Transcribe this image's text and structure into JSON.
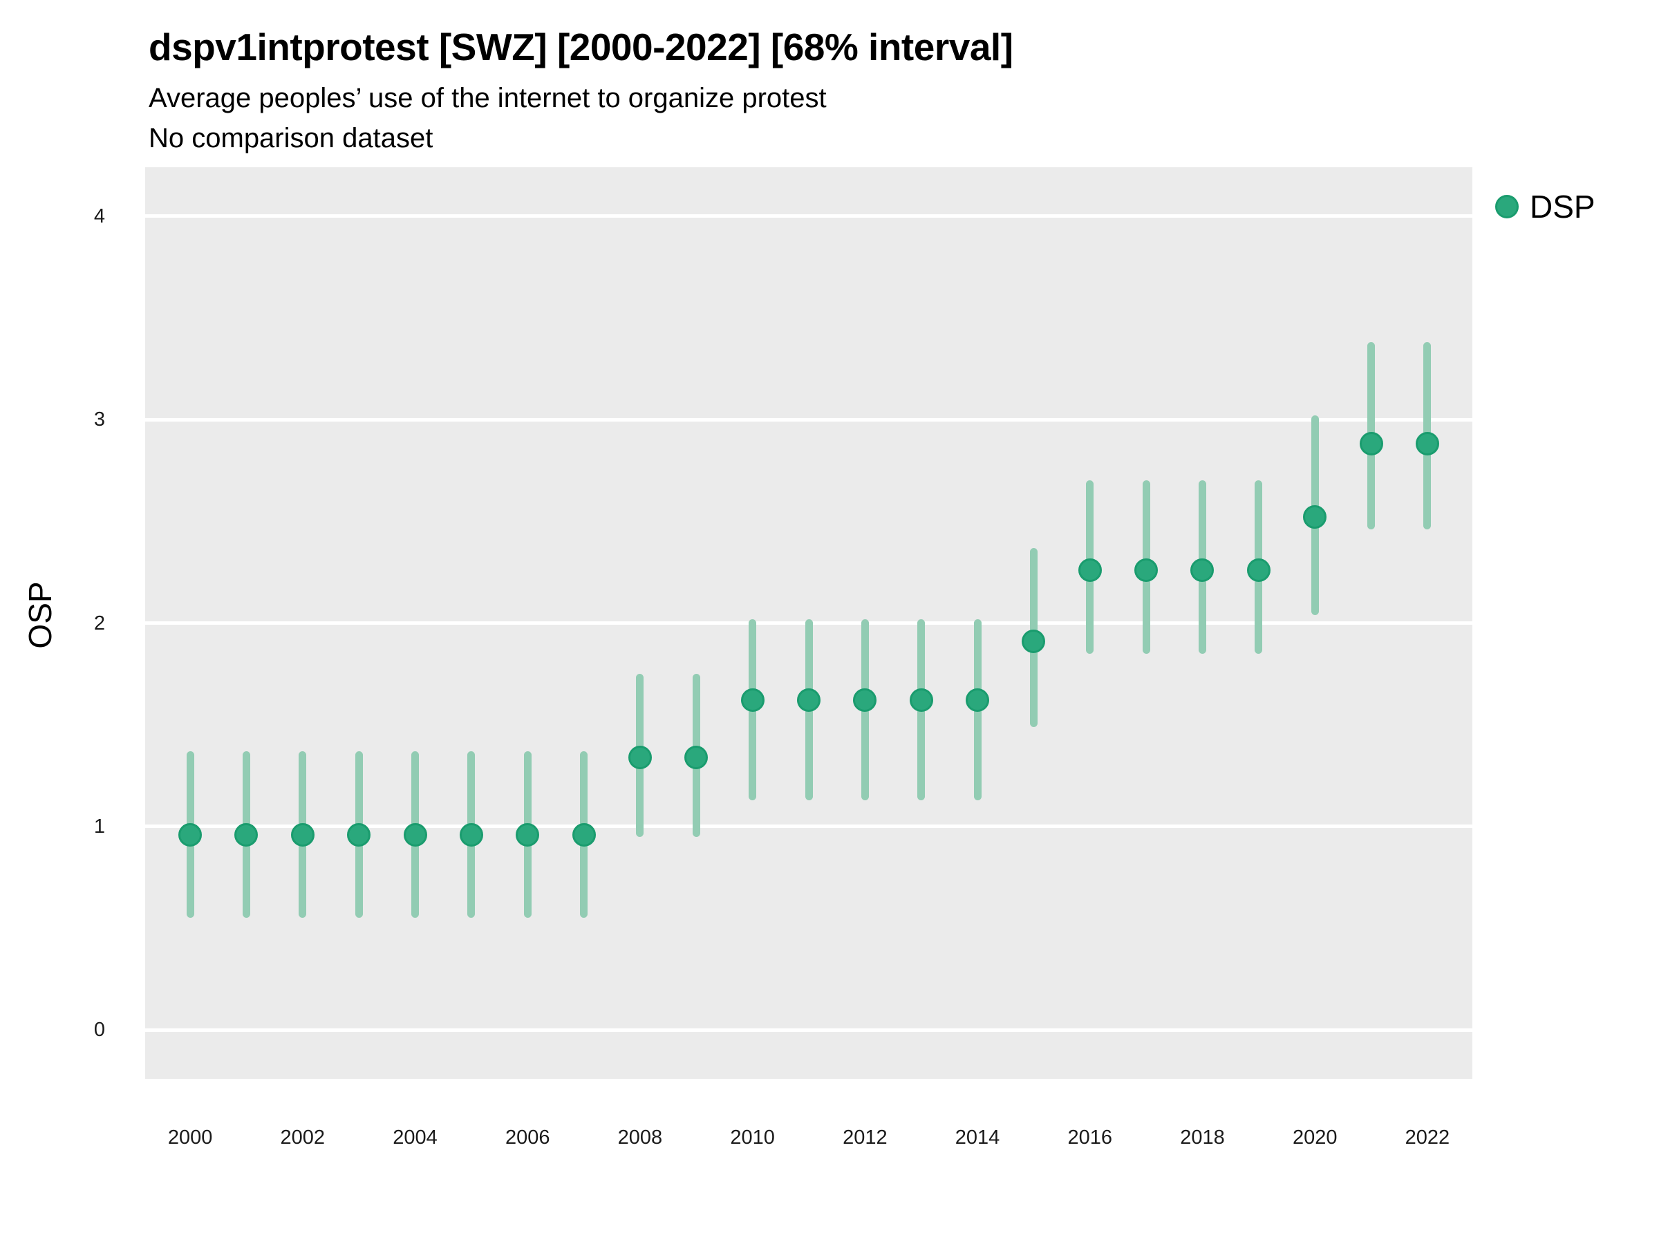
{
  "chart_data": {
    "type": "scatter",
    "title": "dspv1intprotest [SWZ] [2000-2022] [68% interval]",
    "subtitle": "Average peoples’ use of the internet to organize protest",
    "note": "No comparison dataset",
    "interval": "68%",
    "xlabel": "",
    "ylabel": "OSP",
    "xlim": [
      1999.2,
      2022.8
    ],
    "ylim": [
      -0.24,
      4.24
    ],
    "yticks": [
      0,
      1,
      2,
      3,
      4
    ],
    "xticks": [
      2000,
      2002,
      2004,
      2006,
      2008,
      2010,
      2012,
      2014,
      2016,
      2018,
      2020,
      2022
    ],
    "grid": {
      "horizontal_major": true,
      "vertical": false
    },
    "panel_bg": "#EBEBEB",
    "gridline_color": "#FFFFFF",
    "legend": {
      "position": "right",
      "label": "DSP"
    },
    "series": [
      {
        "name": "DSP",
        "marker_fill": "#2AA87C",
        "marker_stroke": "#1A9C6E",
        "interval_color": "#92CCB3",
        "points": [
          {
            "year": 2000,
            "est": 0.96,
            "lo": 0.55,
            "hi": 1.37
          },
          {
            "year": 2001,
            "est": 0.96,
            "lo": 0.55,
            "hi": 1.37
          },
          {
            "year": 2002,
            "est": 0.96,
            "lo": 0.55,
            "hi": 1.37
          },
          {
            "year": 2003,
            "est": 0.96,
            "lo": 0.55,
            "hi": 1.37
          },
          {
            "year": 2004,
            "est": 0.96,
            "lo": 0.55,
            "hi": 1.37
          },
          {
            "year": 2005,
            "est": 0.96,
            "lo": 0.55,
            "hi": 1.37
          },
          {
            "year": 2006,
            "est": 0.96,
            "lo": 0.55,
            "hi": 1.37
          },
          {
            "year": 2007,
            "est": 0.96,
            "lo": 0.55,
            "hi": 1.37
          },
          {
            "year": 2008,
            "est": 1.34,
            "lo": 0.95,
            "hi": 1.75
          },
          {
            "year": 2009,
            "est": 1.34,
            "lo": 0.95,
            "hi": 1.75
          },
          {
            "year": 2010,
            "est": 1.62,
            "lo": 1.13,
            "hi": 2.02
          },
          {
            "year": 2011,
            "est": 1.62,
            "lo": 1.13,
            "hi": 2.02
          },
          {
            "year": 2012,
            "est": 1.62,
            "lo": 1.13,
            "hi": 2.02
          },
          {
            "year": 2013,
            "est": 1.62,
            "lo": 1.13,
            "hi": 2.02
          },
          {
            "year": 2014,
            "est": 1.62,
            "lo": 1.13,
            "hi": 2.02
          },
          {
            "year": 2015,
            "est": 1.91,
            "lo": 1.49,
            "hi": 2.37
          },
          {
            "year": 2016,
            "est": 2.26,
            "lo": 1.85,
            "hi": 2.7
          },
          {
            "year": 2017,
            "est": 2.26,
            "lo": 1.85,
            "hi": 2.7
          },
          {
            "year": 2018,
            "est": 2.26,
            "lo": 1.85,
            "hi": 2.7
          },
          {
            "year": 2019,
            "est": 2.26,
            "lo": 1.85,
            "hi": 2.7
          },
          {
            "year": 2020,
            "est": 2.52,
            "lo": 2.04,
            "hi": 3.02
          },
          {
            "year": 2021,
            "est": 2.88,
            "lo": 2.46,
            "hi": 3.38
          },
          {
            "year": 2022,
            "est": 2.88,
            "lo": 2.46,
            "hi": 3.38
          }
        ]
      }
    ]
  }
}
